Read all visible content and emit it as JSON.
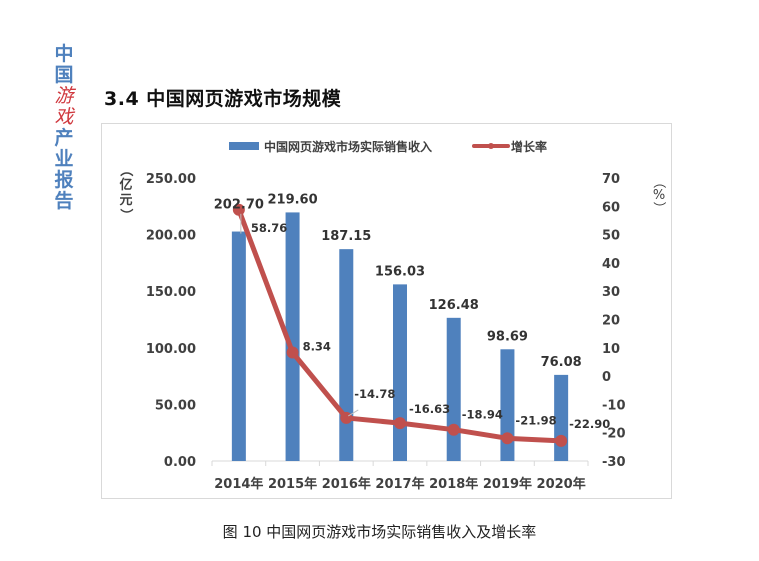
{
  "side_title": [
    "中",
    "国",
    "游",
    "戏",
    "产",
    "业",
    "报",
    "告"
  ],
  "section_title": "3.4  中国网页游戏市场规模",
  "caption": "图 10  中国网页游戏市场实际销售收入及增长率",
  "colors": {
    "bar": "#4f81bd",
    "line": "#c0504d",
    "text": "#404040",
    "accent_blue": "#4f81bd",
    "accent_red": "#d0393f"
  },
  "chart_data": {
    "type": "bar+line",
    "title": "",
    "categories": [
      "2014年",
      "2015年",
      "2016年",
      "2017年",
      "2018年",
      "2019年",
      "2020年"
    ],
    "series": [
      {
        "name": "中国网页游戏市场实际销售收入",
        "type": "bar",
        "axis": "left",
        "values": [
          202.7,
          219.6,
          187.15,
          156.03,
          126.48,
          98.69,
          76.08
        ],
        "labels": [
          "202.70",
          "219.60",
          "187.15",
          "156.03",
          "126.48",
          "98.69",
          "76.08"
        ]
      },
      {
        "name": "增长率",
        "type": "line",
        "axis": "right",
        "values": [
          58.76,
          8.34,
          -14.78,
          -16.63,
          -18.94,
          -21.98,
          -22.9
        ],
        "labels": [
          "58.76",
          "8.34",
          "-14.78",
          "-16.63",
          "-18.94",
          "-21.98",
          "-22.90"
        ]
      }
    ],
    "ylabel_left": "（亿元）",
    "ylabel_right": "（%）",
    "ylim_left": [
      0,
      250
    ],
    "ylim_right": [
      -30,
      70
    ],
    "yticks_left": [
      "250.00",
      "200.00",
      "150.00",
      "100.00",
      "50.00",
      "0.00"
    ],
    "yticks_right": [
      "70",
      "60",
      "50",
      "40",
      "30",
      "20",
      "10",
      "0",
      "-10",
      "-20",
      "-30"
    ],
    "legend_position": "top",
    "grid": false
  }
}
